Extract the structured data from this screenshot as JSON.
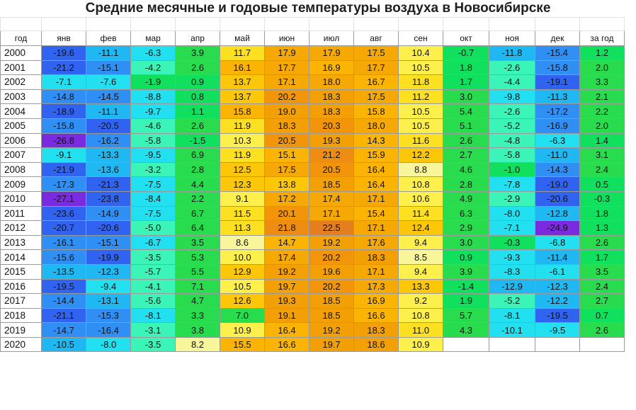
{
  "title": "Средние месячные и годовые температуры воздуха в Новосибирске",
  "headers": [
    "год",
    "янв",
    "фев",
    "мар",
    "апр",
    "май",
    "июн",
    "июл",
    "авг",
    "сен",
    "окт",
    "ноя",
    "дек",
    "за год"
  ],
  "rows": [
    [
      "2000",
      "-19.6",
      "-11.1",
      "-6.3",
      "3.9",
      "11.7",
      "17.9",
      "17.9",
      "17.5",
      "10.4",
      "-0.7",
      "-11.8",
      "-15.4",
      "1.2"
    ],
    [
      "2001",
      "-21.2",
      "-15.1",
      "-4.2",
      "2.6",
      "16.1",
      "17.7",
      "16.9",
      "17.7",
      "10.5",
      "1.8",
      "-2.6",
      "-15.8",
      "2.0"
    ],
    [
      "2002",
      "-7.1",
      "-7.6",
      "-1.9",
      "0.9",
      "13.7",
      "17.1",
      "18.0",
      "16.7",
      "11.8",
      "1.7",
      "-4.4",
      "-19.1",
      "3.3"
    ],
    [
      "2003",
      "-14.8",
      "-14.5",
      "-8.8",
      "0.8",
      "13.7",
      "20.2",
      "18.3",
      "17.5",
      "11.2",
      "3.0",
      "-9.8",
      "-11.3",
      "2.1"
    ],
    [
      "2004",
      "-18.9",
      "-11.1",
      "-9.7",
      "1.1",
      "15.8",
      "19.0",
      "18.3",
      "15.8",
      "10.5",
      "5.4",
      "-2.6",
      "-17.2",
      "2.2"
    ],
    [
      "2005",
      "-15.8",
      "-20.5",
      "-4.6",
      "2.6",
      "11.9",
      "18.3",
      "20.3",
      "18.0",
      "10.5",
      "5.1",
      "-5.2",
      "-16.9",
      "2.0"
    ],
    [
      "2006",
      "-26.8",
      "-16.2",
      "-5.8",
      "-1.5",
      "10.3",
      "20.5",
      "19.3",
      "14.3",
      "11.6",
      "2.6",
      "-4.8",
      "-6.3",
      "1.4"
    ],
    [
      "2007",
      "-9.1",
      "-13.3",
      "-9.5",
      "6.9",
      "11.9",
      "15.1",
      "21.2",
      "15.9",
      "12.2",
      "2.7",
      "-5.8",
      "-11.0",
      "3.1"
    ],
    [
      "2008",
      "-21.9",
      "-13.6",
      "-3.2",
      "2.8",
      "12.5",
      "17.5",
      "20.5",
      "16.4",
      "8.8",
      "4.6",
      "-1.0",
      "-14.3",
      "2.4"
    ],
    [
      "2009",
      "-17.3",
      "-21.3",
      "-7.5",
      "4.4",
      "12.3",
      "13.8",
      "18.5",
      "16.4",
      "10.8",
      "2.8",
      "-7.8",
      "-19.0",
      "0.5"
    ],
    [
      "2010",
      "-27.1",
      "-23.8",
      "-8.4",
      "2.2",
      "9.1",
      "17.2",
      "17.4",
      "17.1",
      "10.6",
      "4.9",
      "-2.9",
      "-20.6",
      "-0.3"
    ],
    [
      "2011",
      "-23.6",
      "-14.9",
      "-7.5",
      "6.7",
      "11.5",
      "20.1",
      "17.1",
      "15.4",
      "11.4",
      "6.3",
      "-8.0",
      "-12.8",
      "1.8"
    ],
    [
      "2012",
      "-20.7",
      "-20.6",
      "-5.0",
      "6.4",
      "11.3",
      "21.8",
      "22.5",
      "17.1",
      "12.4",
      "2.9",
      "-7.1",
      "-24.9",
      "1.3"
    ],
    [
      "2013",
      "-16.1",
      "-15.1",
      "-6.7",
      "3.5",
      "8.6",
      "14.7",
      "19.2",
      "17.6",
      "9.4",
      "3.0",
      "-0.3",
      "-6.8",
      "2.6"
    ],
    [
      "2014",
      "-15.6",
      "-19.9",
      "-3.5",
      "5.3",
      "10.0",
      "17.4",
      "20.2",
      "18.3",
      "8.5",
      "0.9",
      "-9.3",
      "-11.4",
      "1.7"
    ],
    [
      "2015",
      "-13.5",
      "-12.3",
      "-5.7",
      "5.5",
      "12.9",
      "19.2",
      "19.6",
      "17.1",
      "9.4",
      "3.9",
      "-8.3",
      "-6.1",
      "3.5"
    ],
    [
      "2016",
      "-19.5",
      "-9.4",
      "-4.1",
      "7.1",
      "10.5",
      "19.7",
      "20.2",
      "17.3",
      "13.3",
      "-1.4",
      "-12.9",
      "-12.3",
      "2.4"
    ],
    [
      "2017",
      "-14.4",
      "-13.1",
      "-5.6",
      "4.7",
      "12.6",
      "19.3",
      "18.5",
      "16.9",
      "9.2",
      "1.9",
      "-5.2",
      "-12.2",
      "2.7"
    ],
    [
      "2018",
      "-21.1",
      "-15.3",
      "-8.1",
      "3.3",
      "7.0",
      "19.1",
      "18.5",
      "16.6",
      "10.8",
      "5.7",
      "-8.1",
      "-19.5",
      "0.7"
    ],
    [
      "2019",
      "-14.7",
      "-16.4",
      "-3.1",
      "3.8",
      "10.9",
      "16.4",
      "19.2",
      "18.3",
      "11.0",
      "4.3",
      "-10.1",
      "-9.5",
      "2.6"
    ],
    [
      "2020",
      "-10.5",
      "-8.0",
      "-3.5",
      "8.2",
      "15.5",
      "16.6",
      "19.7",
      "18.6",
      "10.9",
      "",
      "",
      "",
      ""
    ]
  ]
}
